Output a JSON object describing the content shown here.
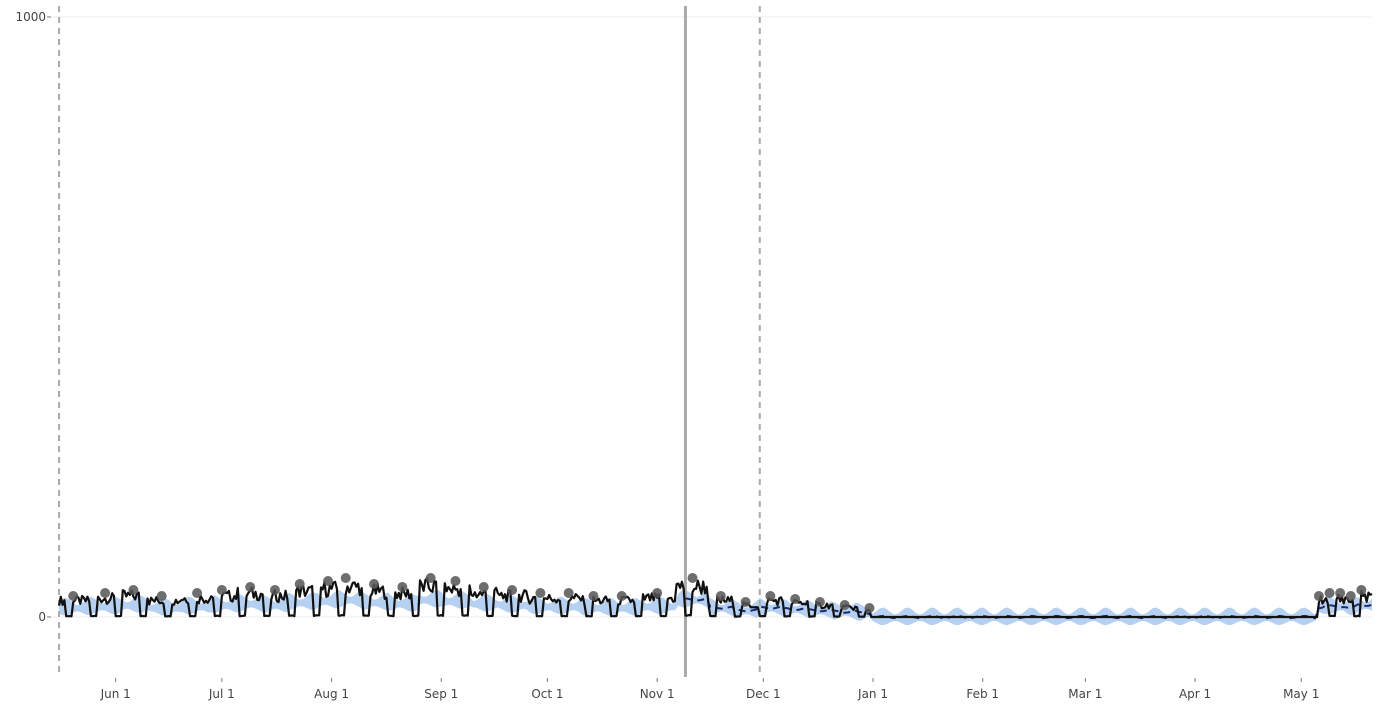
{
  "chart_data": {
    "type": "line",
    "title": "",
    "xlabel": "",
    "ylabel": "",
    "ylim": [
      -100,
      1000
    ],
    "y_ticks": [
      0,
      1000
    ],
    "x_ticks": [
      {
        "date": "2019-06-01",
        "label": "Jun 1"
      },
      {
        "date": "2019-07-01",
        "label": "Jul 1"
      },
      {
        "date": "2019-08-01",
        "label": "Aug 1"
      },
      {
        "date": "2019-09-01",
        "label": "Sep 1"
      },
      {
        "date": "2019-10-01",
        "label": "Oct 1"
      },
      {
        "date": "2019-11-01",
        "label": "Nov 1"
      },
      {
        "date": "2019-12-01",
        "label": "Dec 1"
      },
      {
        "date": "2020-01-01",
        "label": "Jan 1"
      },
      {
        "date": "2020-02-01",
        "label": "Feb 1"
      },
      {
        "date": "2020-03-01",
        "label": "Mar 1"
      },
      {
        "date": "2020-04-01",
        "label": "Apr 1"
      },
      {
        "date": "2020-05-01",
        "label": "May 1"
      }
    ],
    "xlim": [
      "2019-05-14",
      "2020-05-21"
    ],
    "grid": true,
    "vertical_lines": [
      {
        "date": "2019-05-16",
        "style": "dashed",
        "color": "#aaaaaa"
      },
      {
        "date": "2019-11-09",
        "style": "solid",
        "color": "#aaaaaa"
      },
      {
        "date": "2019-11-30",
        "style": "dashed",
        "color": "#aaaaaa"
      }
    ],
    "observed": {
      "color": "#111111",
      "marker_color": "#555555",
      "peak_dates": [
        "2019-05-20",
        "2019-05-29",
        "2019-06-06",
        "2019-06-14",
        "2019-06-24",
        "2019-07-01",
        "2019-07-09",
        "2019-07-16",
        "2019-07-23",
        "2019-07-31",
        "2019-08-05",
        "2019-08-13",
        "2019-08-21",
        "2019-08-29",
        "2019-09-05",
        "2019-09-13",
        "2019-09-21",
        "2019-09-29",
        "2019-10-07",
        "2019-10-14",
        "2019-10-22",
        "2019-11-01",
        "2019-11-11",
        "2019-11-19",
        "2019-11-26",
        "2019-12-03",
        "2019-12-10",
        "2019-12-17",
        "2019-12-24",
        "2019-12-31",
        "2020-05-06",
        "2020-05-09",
        "2020-05-12",
        "2020-05-15",
        "2020-05-18"
      ],
      "peak_values": [
        35,
        40,
        45,
        35,
        40,
        45,
        50,
        45,
        55,
        60,
        65,
        55,
        50,
        65,
        60,
        50,
        45,
        40,
        40,
        35,
        35,
        40,
        65,
        35,
        25,
        35,
        30,
        25,
        20,
        15,
        35,
        40,
        40,
        35,
        45
      ],
      "trough_value": 0
    },
    "forecast": {
      "line_color": "#1a2a6c",
      "band_color": "#a9c8ee",
      "band_width": 20,
      "start_date": "2019-11-09",
      "end_date": "2020-05-21"
    }
  }
}
